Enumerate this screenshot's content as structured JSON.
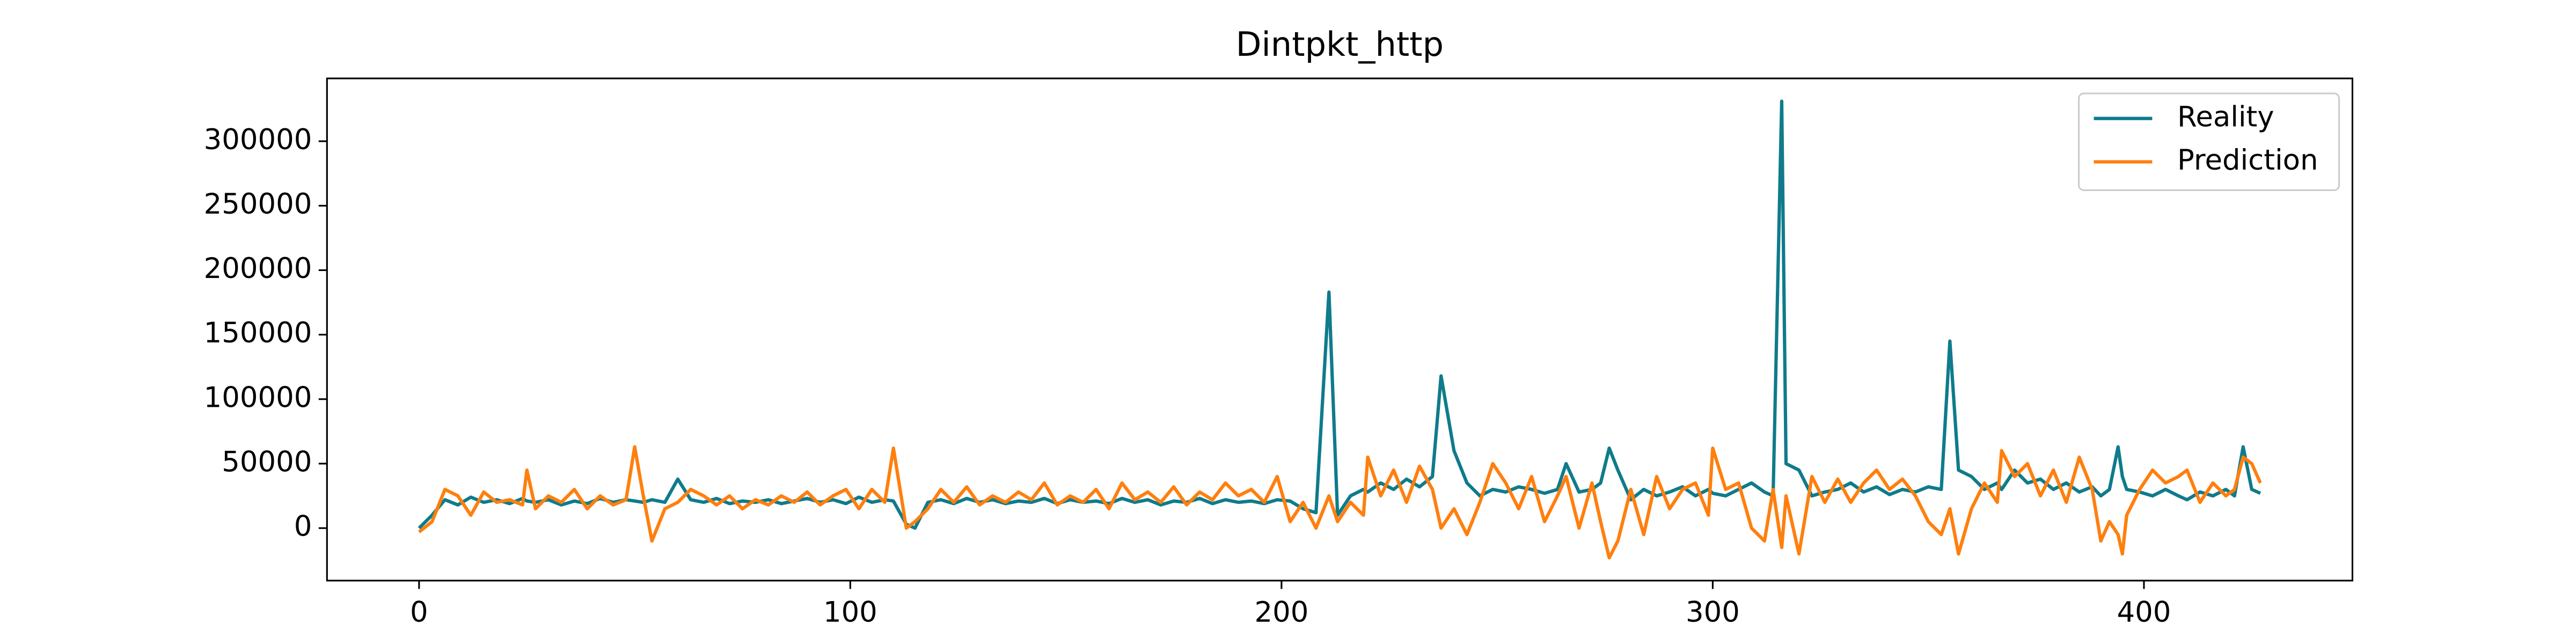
{
  "chart_data": {
    "type": "line",
    "title": "Dintpkt_http",
    "x": [
      0,
      3,
      6,
      9,
      12,
      15,
      18,
      21,
      24,
      25,
      27,
      30,
      33,
      36,
      39,
      42,
      45,
      48,
      50,
      52,
      54,
      57,
      60,
      63,
      66,
      69,
      72,
      75,
      78,
      81,
      84,
      87,
      90,
      93,
      96,
      99,
      102,
      105,
      108,
      110,
      113,
      115,
      118,
      121,
      124,
      127,
      130,
      133,
      136,
      139,
      142,
      145,
      148,
      151,
      154,
      157,
      160,
      163,
      166,
      169,
      172,
      175,
      178,
      181,
      184,
      187,
      190,
      193,
      196,
      199,
      202,
      205,
      208,
      211,
      213,
      216,
      219,
      220,
      223,
      226,
      229,
      232,
      235,
      237,
      240,
      243,
      246,
      249,
      252,
      255,
      258,
      261,
      264,
      266,
      269,
      272,
      274,
      276,
      278,
      281,
      284,
      287,
      290,
      293,
      296,
      299,
      300,
      303,
      306,
      309,
      312,
      314,
      316,
      317,
      320,
      323,
      326,
      329,
      332,
      335,
      338,
      341,
      344,
      347,
      350,
      353,
      355,
      357,
      360,
      363,
      366,
      367,
      370,
      373,
      376,
      379,
      382,
      385,
      388,
      390,
      392,
      394,
      395,
      396,
      399,
      402,
      405,
      408,
      410,
      413,
      416,
      419,
      421,
      423,
      425,
      427
    ],
    "series": [
      {
        "name": "Reality",
        "color": "#0f7b8b",
        "values": [
          0,
          10000,
          22000,
          18000,
          24000,
          20000,
          22000,
          19000,
          23000,
          21000,
          20000,
          22000,
          18000,
          21000,
          19000,
          23000,
          20000,
          22000,
          21000,
          20000,
          22000,
          20000,
          38000,
          22000,
          20000,
          23000,
          19000,
          21000,
          20000,
          22000,
          19000,
          21000,
          23000,
          20000,
          22000,
          19000,
          24000,
          20000,
          22000,
          21000,
          3000,
          0,
          20000,
          22000,
          19000,
          23000,
          20000,
          22000,
          19000,
          21000,
          20000,
          23000,
          19000,
          22000,
          20000,
          21000,
          19000,
          23000,
          20000,
          22000,
          18000,
          21000,
          20000,
          23000,
          19000,
          22000,
          20000,
          21000,
          19000,
          22000,
          21000,
          15000,
          12000,
          183000,
          10000,
          25000,
          30000,
          28000,
          35000,
          30000,
          38000,
          32000,
          40000,
          118000,
          60000,
          35000,
          25000,
          30000,
          28000,
          32000,
          30000,
          27000,
          30000,
          50000,
          28000,
          30000,
          35000,
          62000,
          45000,
          22000,
          30000,
          25000,
          28000,
          32000,
          25000,
          30000,
          27000,
          25000,
          30000,
          35000,
          28000,
          25000,
          331000,
          50000,
          45000,
          25000,
          28000,
          30000,
          35000,
          28000,
          32000,
          26000,
          30000,
          28000,
          32000,
          30000,
          145000,
          45000,
          40000,
          30000,
          35000,
          30000,
          45000,
          35000,
          38000,
          30000,
          35000,
          28000,
          32000,
          25000,
          30000,
          63000,
          40000,
          30000,
          28000,
          25000,
          30000,
          25000,
          22000,
          28000,
          25000,
          30000,
          25000,
          63000,
          30000,
          27000
        ]
      },
      {
        "name": "Prediction",
        "color": "#ff7f0e",
        "values": [
          -3000,
          5000,
          30000,
          25000,
          10000,
          28000,
          20000,
          22000,
          18000,
          45000,
          15000,
          25000,
          20000,
          30000,
          15000,
          25000,
          18000,
          22000,
          63000,
          25000,
          -10000,
          15000,
          20000,
          30000,
          25000,
          18000,
          25000,
          15000,
          22000,
          18000,
          25000,
          20000,
          28000,
          18000,
          25000,
          30000,
          15000,
          30000,
          20000,
          62000,
          0,
          5000,
          15000,
          30000,
          20000,
          32000,
          18000,
          25000,
          20000,
          28000,
          22000,
          35000,
          18000,
          25000,
          20000,
          30000,
          15000,
          35000,
          22000,
          28000,
          20000,
          32000,
          18000,
          28000,
          22000,
          35000,
          25000,
          30000,
          20000,
          40000,
          5000,
          20000,
          0,
          25000,
          5000,
          20000,
          10000,
          55000,
          25000,
          45000,
          20000,
          48000,
          30000,
          0,
          15000,
          -5000,
          20000,
          50000,
          35000,
          15000,
          40000,
          5000,
          25000,
          40000,
          0,
          35000,
          5000,
          -23000,
          -10000,
          30000,
          -5000,
          40000,
          15000,
          30000,
          35000,
          10000,
          62000,
          30000,
          35000,
          0,
          -10000,
          30000,
          -15000,
          25000,
          -20000,
          40000,
          20000,
          38000,
          20000,
          35000,
          45000,
          30000,
          38000,
          25000,
          5000,
          -5000,
          15000,
          -20000,
          15000,
          35000,
          20000,
          60000,
          40000,
          50000,
          25000,
          45000,
          20000,
          55000,
          30000,
          -10000,
          5000,
          -5000,
          -20000,
          10000,
          30000,
          45000,
          35000,
          40000,
          45000,
          20000,
          35000,
          25000,
          30000,
          55000,
          50000,
          35000
        ]
      }
    ],
    "xlim": [
      -21.35,
      448.35
    ],
    "ylim": [
      -40700,
      348700
    ],
    "xticks": [
      0,
      100,
      200,
      300,
      400
    ],
    "yticks": [
      0,
      50000,
      100000,
      150000,
      200000,
      250000,
      300000
    ],
    "legend": "upper right"
  }
}
